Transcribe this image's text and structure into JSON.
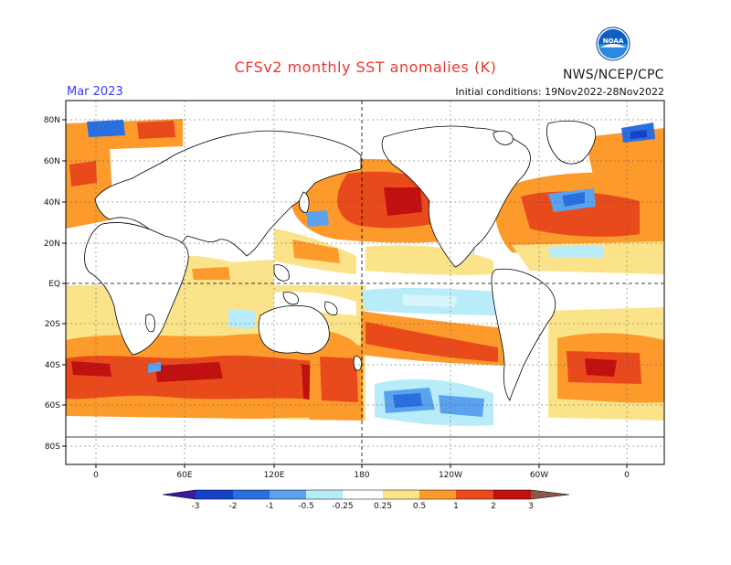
{
  "header": {
    "title": "CFSv2 monthly SST anomalies (K)",
    "organization": "NWS/NCEP/CPC",
    "logo_text": "NOAA",
    "month": "Mar 2023",
    "initial_conditions": "Initial conditions: 19Nov2022-28Nov2022"
  },
  "map": {
    "lat_labels": [
      "80N",
      "60N",
      "40N",
      "20N",
      "EQ",
      "20S",
      "40S",
      "60S",
      "80S"
    ],
    "lon_labels": [
      "0",
      "60E",
      "120E",
      "180",
      "120W",
      "60W",
      "0"
    ]
  },
  "legend": {
    "labels": [
      "-3",
      "-2",
      "-1",
      "-0.5",
      "-0.25",
      "0.25",
      "0.5",
      "1",
      "2",
      "3"
    ],
    "colors": {
      "lt_-3": "#3c1a99",
      "-3_-2": "#1540c8",
      "-2_-1": "#2a6fe0",
      "-1_-0.5": "#5aa2ee",
      "-0.5_-0.25": "#b8ecf8",
      "-0.25_0.25": "#ffffff",
      "0.25_0.5": "#fbe38a",
      "0.5_1": "#fd9a2c",
      "1_2": "#e84a1c",
      "2_3": "#c01010",
      "gt_3": "#8a5a48"
    }
  }
}
